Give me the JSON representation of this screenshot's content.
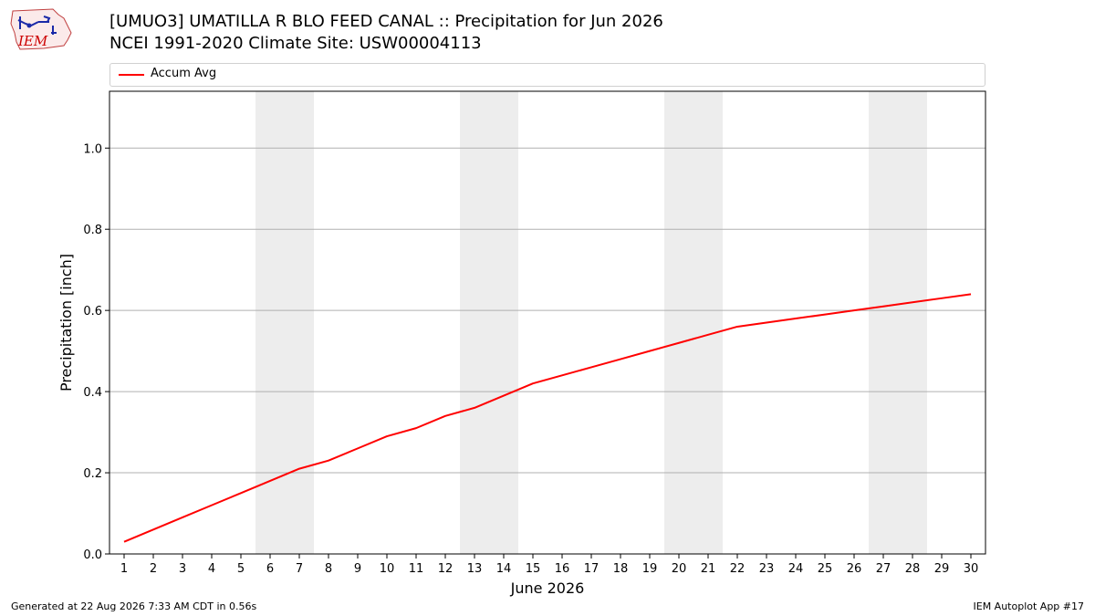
{
  "header": {
    "title_line1": "[UMUO3] UMATILLA R BLO  FEED CANAL :: Precipitation for Jun 2026",
    "title_line2": "NCEI 1991-2020 Climate Site: USW00004113"
  },
  "logo": {
    "text": "IEM",
    "icon": "iem-logo-icon",
    "color": "#cc0000"
  },
  "legend": {
    "label": "Accum Avg",
    "color": "#ff0000"
  },
  "chart_data": {
    "type": "line",
    "xlabel": "June 2026",
    "ylabel": "Precipitation [inch]",
    "x": [
      1,
      2,
      3,
      4,
      5,
      6,
      7,
      8,
      9,
      10,
      11,
      12,
      13,
      14,
      15,
      16,
      17,
      18,
      19,
      20,
      21,
      22,
      23,
      24,
      25,
      26,
      27,
      28,
      29,
      30
    ],
    "xlim": [
      0.5,
      30.5
    ],
    "ylim": [
      0.0,
      1.14
    ],
    "yticks": [
      0.0,
      0.2,
      0.4,
      0.6,
      0.8,
      1.0
    ],
    "ytick_labels": [
      "0.0",
      "0.2",
      "0.4",
      "0.6",
      "0.8",
      "1.0"
    ],
    "grid": "horizontal",
    "legend_position": "top",
    "weekend_shading": [
      [
        5.5,
        7.5
      ],
      [
        12.5,
        14.5
      ],
      [
        19.5,
        21.5
      ],
      [
        26.5,
        28.5
      ]
    ],
    "shading_color": "#ededed",
    "series": [
      {
        "name": "Accum Avg",
        "color": "#ff0000",
        "values": [
          0.03,
          0.06,
          0.09,
          0.12,
          0.15,
          0.18,
          0.21,
          0.23,
          0.26,
          0.29,
          0.31,
          0.34,
          0.36,
          0.39,
          0.42,
          0.44,
          0.46,
          0.48,
          0.5,
          0.52,
          0.54,
          0.56,
          0.57,
          0.58,
          0.59,
          0.6,
          0.61,
          0.62,
          0.63,
          0.64
        ]
      }
    ]
  },
  "footer": {
    "left": "Generated at 22 Aug 2026 7:33 AM CDT in 0.56s",
    "right": "IEM Autoplot App #17"
  }
}
